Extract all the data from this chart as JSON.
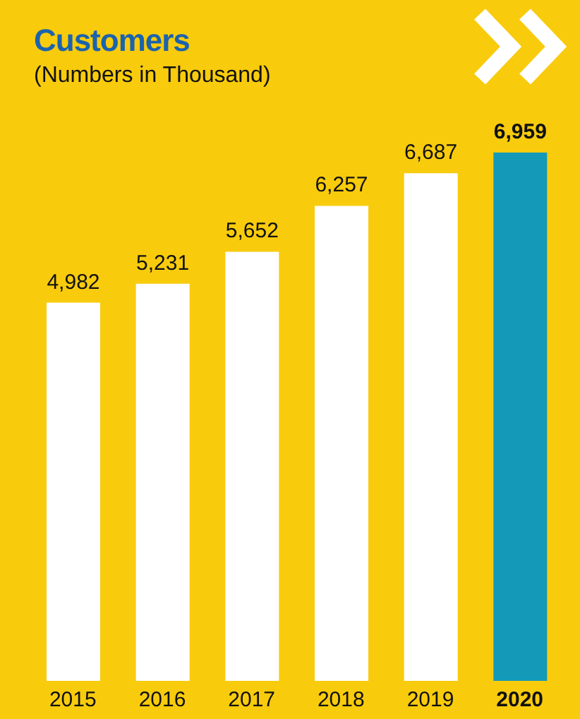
{
  "chart_data": {
    "type": "bar",
    "title": "Customers",
    "subtitle": "(Numbers in Thousand)",
    "categories": [
      "2015",
      "2016",
      "2017",
      "2018",
      "2019",
      "2020"
    ],
    "values": [
      4982,
      5231,
      5652,
      6257,
      6687,
      6959
    ],
    "colors": [
      "#ffffff",
      "#ffffff",
      "#ffffff",
      "#ffffff",
      "#ffffff",
      "#149ab8"
    ],
    "value_labels": [
      "4,982",
      "5,231",
      "5,652",
      "6,257",
      "6,687",
      "6,959"
    ],
    "tick_labels": "x",
    "grid": false,
    "legend": false
  }
}
